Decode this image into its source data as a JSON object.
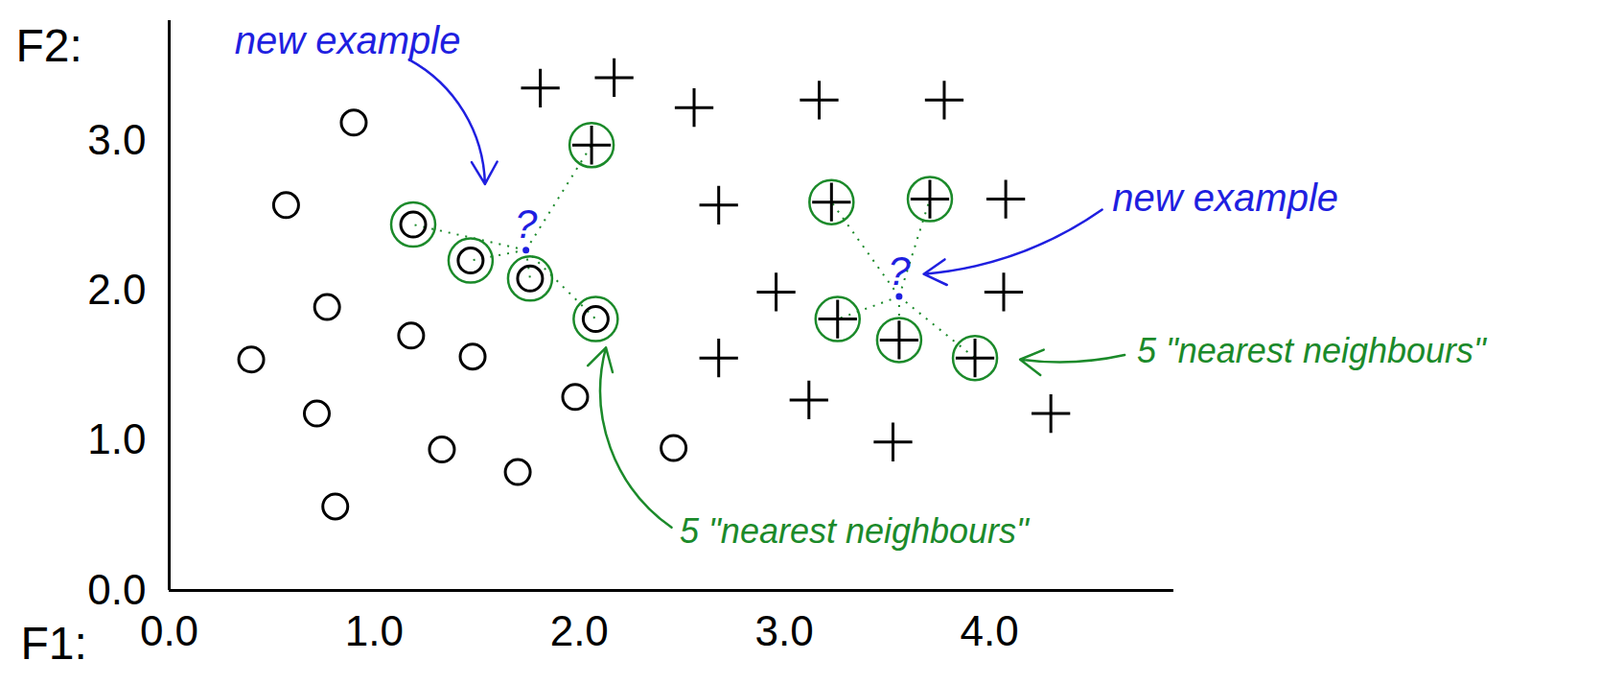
{
  "chart_data": {
    "type": "scatter",
    "x_label": "F1:",
    "y_label": "F2:",
    "xlim": [
      0,
      4.9
    ],
    "ylim": [
      0,
      3.8
    ],
    "xticks": [
      0,
      1,
      2,
      3,
      4
    ],
    "yticks": [
      0,
      1,
      2,
      3
    ],
    "grid": false,
    "series": [
      {
        "marker": "circle",
        "color": "#000000",
        "x": [
          0.9,
          0.57,
          1.19,
          1.47,
          1.76,
          2.08,
          0.77,
          1.18,
          1.48,
          0.4,
          0.72,
          1.98,
          1.33,
          1.7,
          2.46,
          0.81
        ],
        "y": [
          3.12,
          2.57,
          2.44,
          2.2,
          2.08,
          1.81,
          1.89,
          1.7,
          1.56,
          1.54,
          1.18,
          1.29,
          0.94,
          0.79,
          0.95,
          0.56
        ]
      },
      {
        "marker": "plus",
        "color": "#000000",
        "x": [
          1.81,
          2.17,
          2.06,
          2.56,
          3.17,
          3.78,
          2.68,
          3.23,
          3.71,
          4.08,
          2.96,
          4.07,
          3.26,
          3.56,
          3.93,
          2.68,
          3.12,
          3.53,
          4.3
        ],
        "y": [
          3.35,
          3.42,
          2.97,
          3.22,
          3.27,
          3.27,
          2.57,
          2.59,
          2.61,
          2.61,
          1.99,
          1.99,
          1.81,
          1.67,
          1.55,
          1.55,
          1.27,
          0.99,
          1.18
        ]
      }
    ],
    "queries": [
      {
        "x": 1.74,
        "y": 2.27,
        "label": "?",
        "color": "#1f1fe0",
        "neighbours": [
          [
            0,
            2
          ],
          [
            0,
            3
          ],
          [
            0,
            4
          ],
          [
            0,
            5
          ],
          [
            1,
            2
          ]
        ]
      },
      {
        "x": 3.56,
        "y": 1.96,
        "label": "?",
        "color": "#1f1fe0",
        "neighbours": [
          [
            1,
            7
          ],
          [
            1,
            8
          ],
          [
            1,
            12
          ],
          [
            1,
            13
          ],
          [
            1,
            14
          ]
        ]
      }
    ],
    "annotations": [
      {
        "text": "new example",
        "color": "#1f1fe0"
      },
      {
        "text": "new example",
        "color": "#1f1fe0"
      },
      {
        "text": "5 \"nearest neighbours\"",
        "color": "#1b8a2a"
      },
      {
        "text": "5 \"nearest neighbours\"",
        "color": "#1b8a2a"
      }
    ]
  }
}
